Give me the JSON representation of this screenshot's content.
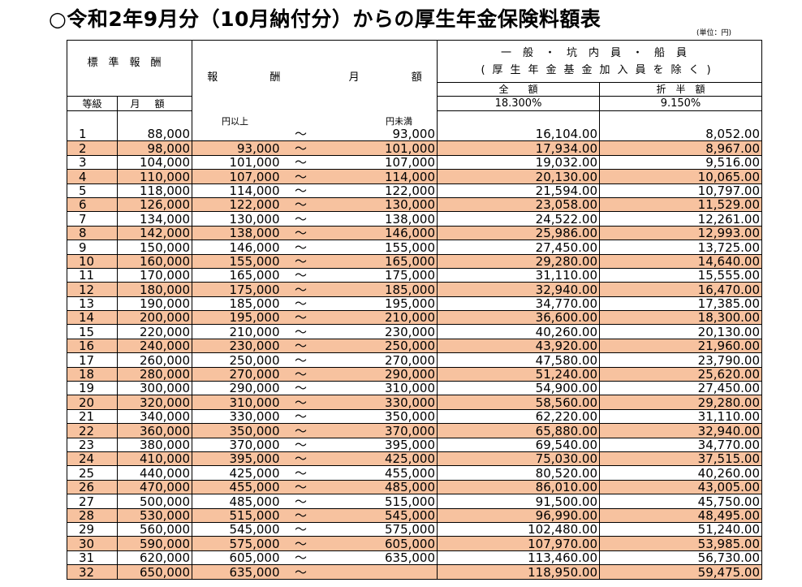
{
  "title": "○令和2年9月分（10月納付分）からの厚生年金保険料額表",
  "unit": "(単位：円)",
  "header": {
    "hyojun": "標準報酬",
    "hoshu_getsugaku": [
      "報",
      "酬",
      "月",
      "額"
    ],
    "category_line1": "一般・坑内員・船員",
    "category_line2": "(厚生年金基金加入員を除く)",
    "zengaku": "全　　額",
    "sechu": "折　半　額",
    "rate_full": "18.300%",
    "rate_half": "9.150%",
    "grade": "等級",
    "getsugaku": "月額",
    "ijo": "円以上",
    "miman": "円未満"
  },
  "tilde": "～",
  "rows": [
    {
      "grade": "1",
      "monthly": "88,000",
      "from": "",
      "to": "93,000",
      "full": "16,104.00",
      "half": "8,052.00"
    },
    {
      "grade": "2",
      "monthly": "98,000",
      "from": "93,000",
      "to": "101,000",
      "full": "17,934.00",
      "half": "8,967.00"
    },
    {
      "grade": "3",
      "monthly": "104,000",
      "from": "101,000",
      "to": "107,000",
      "full": "19,032.00",
      "half": "9,516.00"
    },
    {
      "grade": "4",
      "monthly": "110,000",
      "from": "107,000",
      "to": "114,000",
      "full": "20,130.00",
      "half": "10,065.00"
    },
    {
      "grade": "5",
      "monthly": "118,000",
      "from": "114,000",
      "to": "122,000",
      "full": "21,594.00",
      "half": "10,797.00"
    },
    {
      "grade": "6",
      "monthly": "126,000",
      "from": "122,000",
      "to": "130,000",
      "full": "23,058.00",
      "half": "11,529.00"
    },
    {
      "grade": "7",
      "monthly": "134,000",
      "from": "130,000",
      "to": "138,000",
      "full": "24,522.00",
      "half": "12,261.00"
    },
    {
      "grade": "8",
      "monthly": "142,000",
      "from": "138,000",
      "to": "146,000",
      "full": "25,986.00",
      "half": "12,993.00"
    },
    {
      "grade": "9",
      "monthly": "150,000",
      "from": "146,000",
      "to": "155,000",
      "full": "27,450.00",
      "half": "13,725.00"
    },
    {
      "grade": "10",
      "monthly": "160,000",
      "from": "155,000",
      "to": "165,000",
      "full": "29,280.00",
      "half": "14,640.00"
    },
    {
      "grade": "11",
      "monthly": "170,000",
      "from": "165,000",
      "to": "175,000",
      "full": "31,110.00",
      "half": "15,555.00"
    },
    {
      "grade": "12",
      "monthly": "180,000",
      "from": "175,000",
      "to": "185,000",
      "full": "32,940.00",
      "half": "16,470.00"
    },
    {
      "grade": "13",
      "monthly": "190,000",
      "from": "185,000",
      "to": "195,000",
      "full": "34,770.00",
      "half": "17,385.00"
    },
    {
      "grade": "14",
      "monthly": "200,000",
      "from": "195,000",
      "to": "210,000",
      "full": "36,600.00",
      "half": "18,300.00"
    },
    {
      "grade": "15",
      "monthly": "220,000",
      "from": "210,000",
      "to": "230,000",
      "full": "40,260.00",
      "half": "20,130.00"
    },
    {
      "grade": "16",
      "monthly": "240,000",
      "from": "230,000",
      "to": "250,000",
      "full": "43,920.00",
      "half": "21,960.00"
    },
    {
      "grade": "17",
      "monthly": "260,000",
      "from": "250,000",
      "to": "270,000",
      "full": "47,580.00",
      "half": "23,790.00"
    },
    {
      "grade": "18",
      "monthly": "280,000",
      "from": "270,000",
      "to": "290,000",
      "full": "51,240.00",
      "half": "25,620.00"
    },
    {
      "grade": "19",
      "monthly": "300,000",
      "from": "290,000",
      "to": "310,000",
      "full": "54,900.00",
      "half": "27,450.00"
    },
    {
      "grade": "20",
      "monthly": "320,000",
      "from": "310,000",
      "to": "330,000",
      "full": "58,560.00",
      "half": "29,280.00"
    },
    {
      "grade": "21",
      "monthly": "340,000",
      "from": "330,000",
      "to": "350,000",
      "full": "62,220.00",
      "half": "31,110.00"
    },
    {
      "grade": "22",
      "monthly": "360,000",
      "from": "350,000",
      "to": "370,000",
      "full": "65,880.00",
      "half": "32,940.00"
    },
    {
      "grade": "23",
      "monthly": "380,000",
      "from": "370,000",
      "to": "395,000",
      "full": "69,540.00",
      "half": "34,770.00"
    },
    {
      "grade": "24",
      "monthly": "410,000",
      "from": "395,000",
      "to": "425,000",
      "full": "75,030.00",
      "half": "37,515.00"
    },
    {
      "grade": "25",
      "monthly": "440,000",
      "from": "425,000",
      "to": "455,000",
      "full": "80,520.00",
      "half": "40,260.00"
    },
    {
      "grade": "26",
      "monthly": "470,000",
      "from": "455,000",
      "to": "485,000",
      "full": "86,010.00",
      "half": "43,005.00"
    },
    {
      "grade": "27",
      "monthly": "500,000",
      "from": "485,000",
      "to": "515,000",
      "full": "91,500.00",
      "half": "45,750.00"
    },
    {
      "grade": "28",
      "monthly": "530,000",
      "from": "515,000",
      "to": "545,000",
      "full": "96,990.00",
      "half": "48,495.00"
    },
    {
      "grade": "29",
      "monthly": "560,000",
      "from": "545,000",
      "to": "575,000",
      "full": "102,480.00",
      "half": "51,240.00"
    },
    {
      "grade": "30",
      "monthly": "590,000",
      "from": "575,000",
      "to": "605,000",
      "full": "107,970.00",
      "half": "53,985.00"
    },
    {
      "grade": "31",
      "monthly": "620,000",
      "from": "605,000",
      "to": "635,000",
      "full": "113,460.00",
      "half": "56,730.00"
    },
    {
      "grade": "32",
      "monthly": "650,000",
      "from": "635,000",
      "to": "",
      "full": "118,950.00",
      "half": "59,475.00"
    }
  ],
  "colors": {
    "alt_row": "#f7c29f",
    "border": "#000000"
  }
}
